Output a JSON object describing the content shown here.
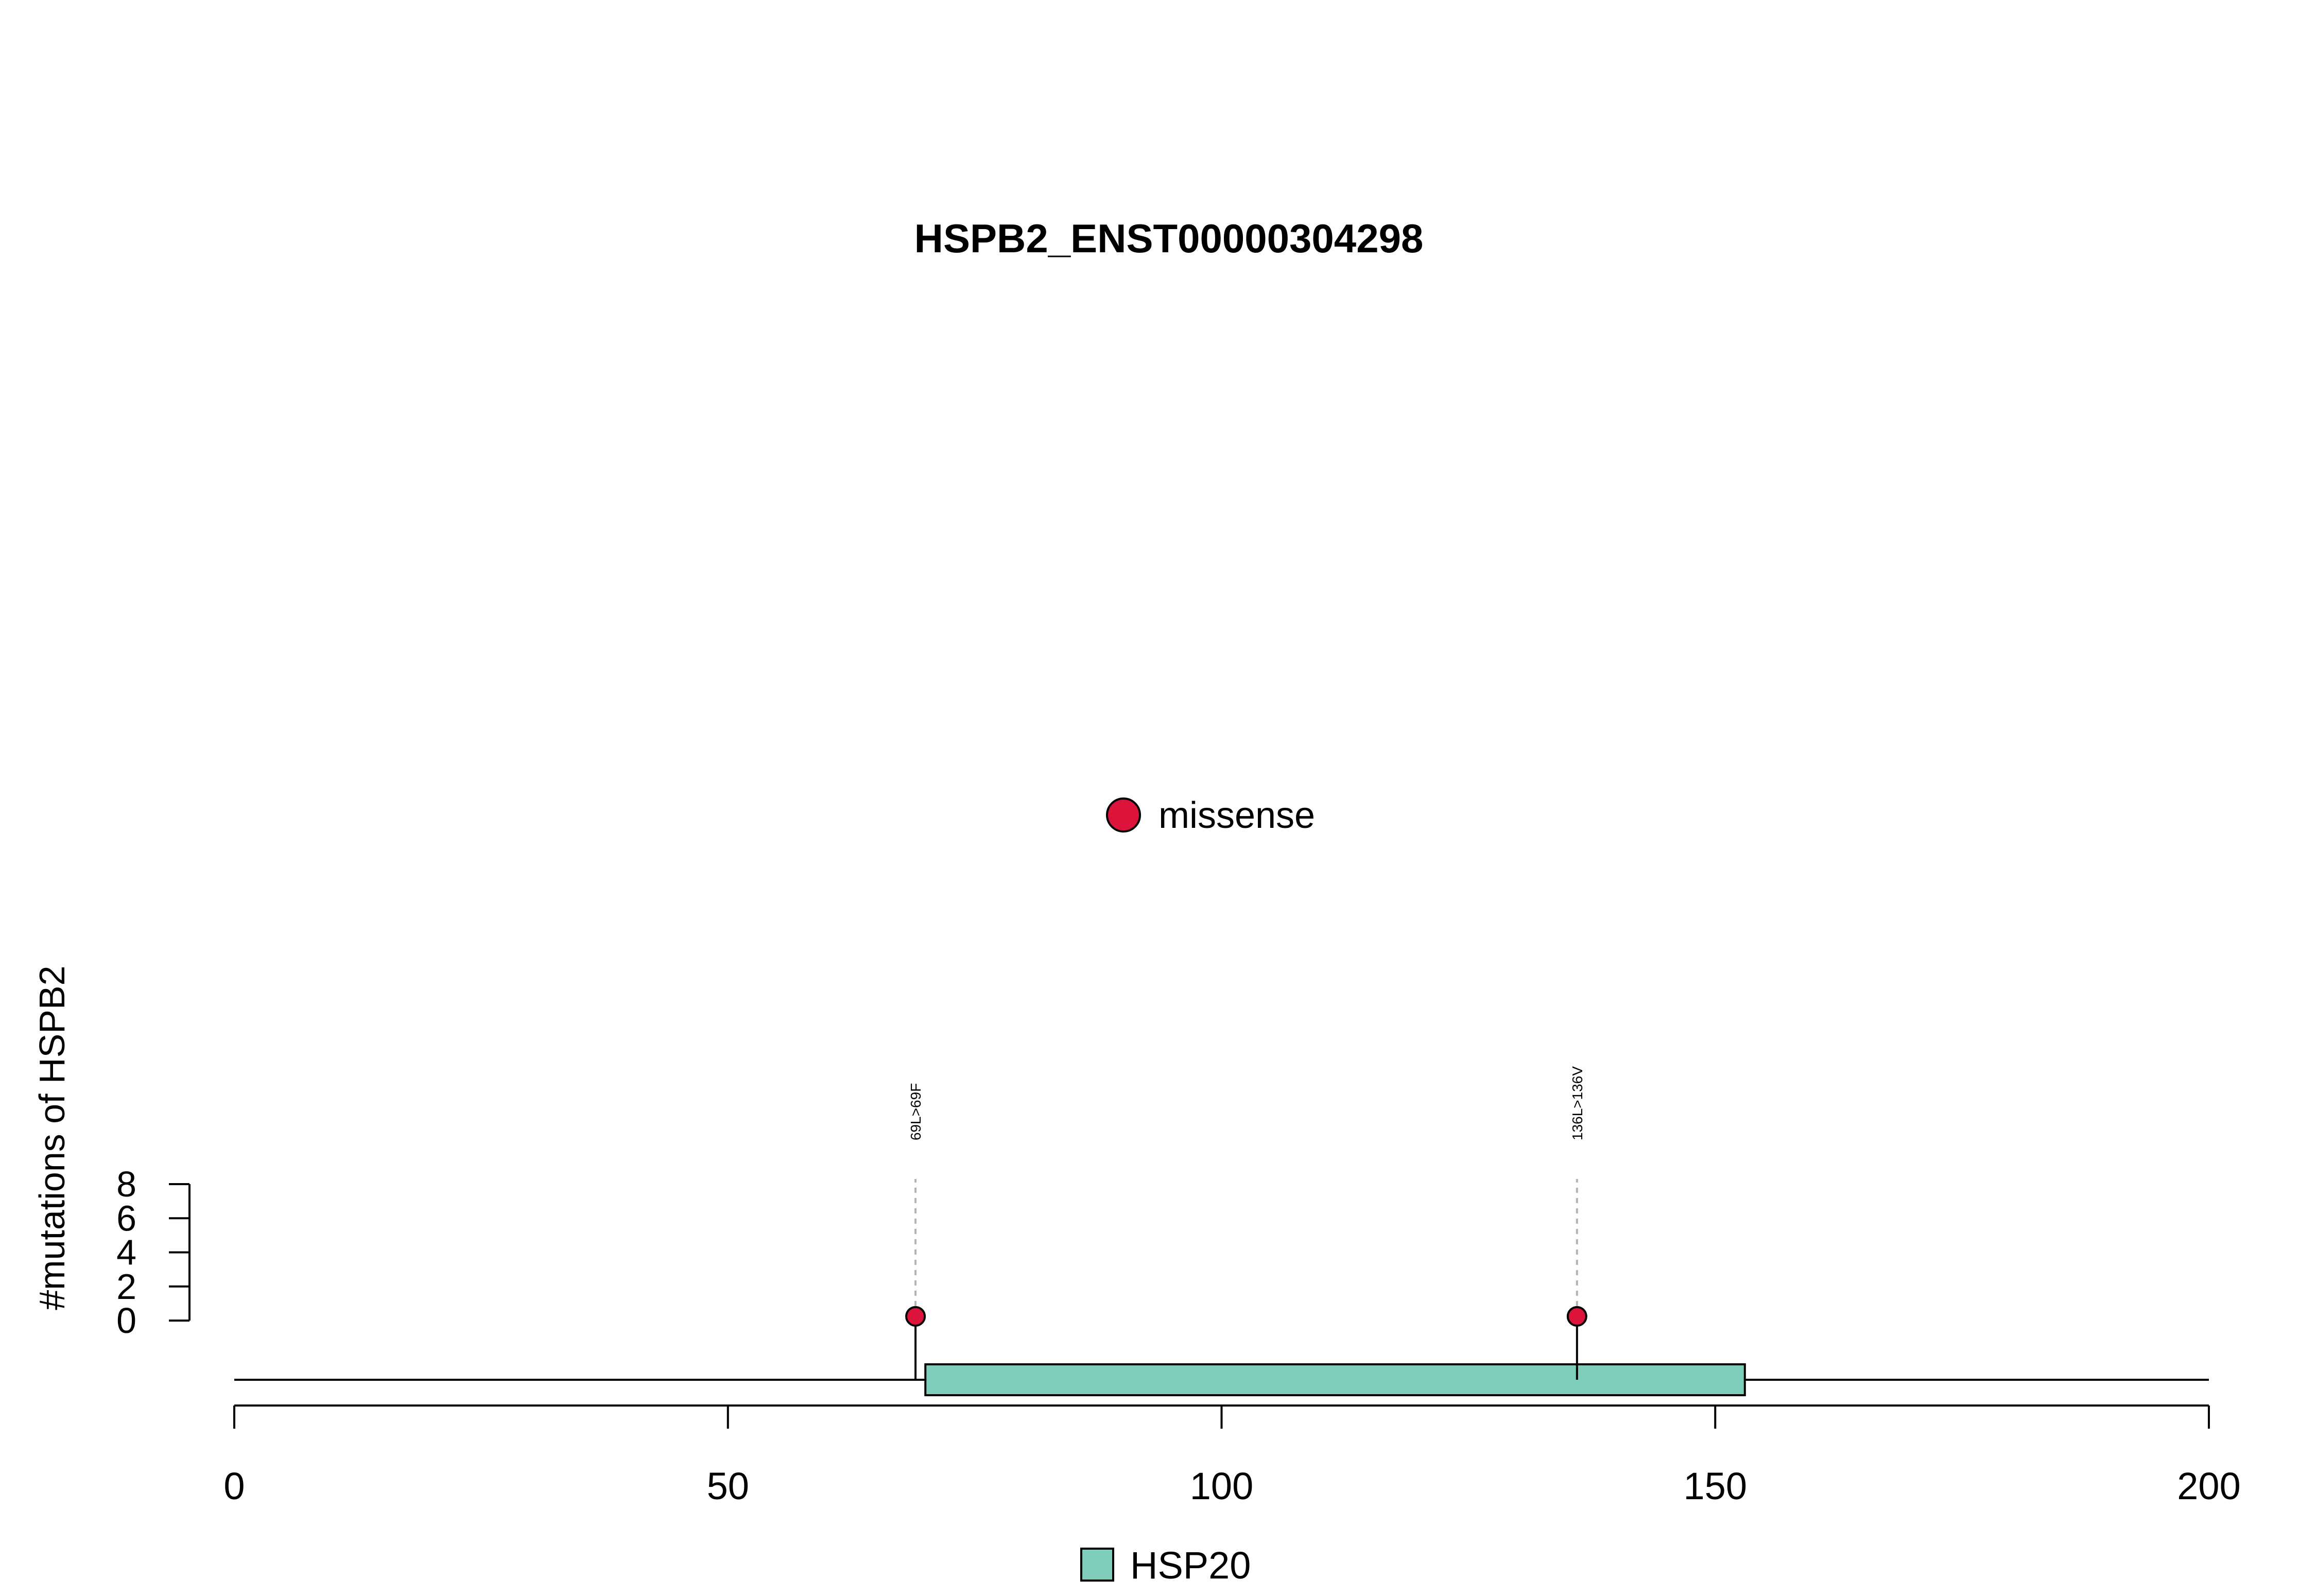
{
  "chart_data": {
    "type": "lollipop",
    "title": "HSPB2_ENST00000304298",
    "ylabel": "#mutations of HSPB2",
    "xlabel": "",
    "xlim": [
      0,
      200
    ],
    "x_ticks": [
      "0",
      "50",
      "100",
      "150",
      "200"
    ],
    "ylim": [
      0,
      8
    ],
    "y_ticks": [
      "0",
      "2",
      "4",
      "6",
      "8"
    ],
    "protein_length": 200,
    "mutation_legend": [
      {
        "name": "missense",
        "color": "#DC143C"
      }
    ],
    "mutations": [
      {
        "position": 69,
        "count": 1,
        "label": "69L>69F",
        "type": "missense"
      },
      {
        "position": 136,
        "count": 1,
        "label": "136L>136V",
        "type": "missense"
      }
    ],
    "domains": [
      {
        "name": "HSP20",
        "start": 70,
        "end": 153,
        "color": "#7FCDBB"
      }
    ]
  }
}
